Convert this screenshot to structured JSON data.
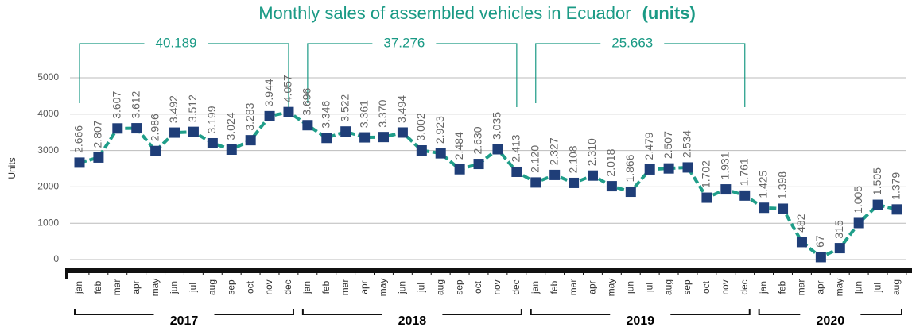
{
  "chart_data": {
    "type": "line",
    "title": "Monthly sales of assembled vehicles in Ecuador",
    "title_emphasis": "(units)",
    "y_label": "Units",
    "categories": [
      "jan",
      "feb",
      "mar",
      "apr",
      "may",
      "jun",
      "jul",
      "aug",
      "sep",
      "oct",
      "nov",
      "dec",
      "jan",
      "feb",
      "mar",
      "apr",
      "may",
      "jun",
      "jul",
      "aug",
      "sep",
      "oct",
      "nov",
      "dec",
      "jan",
      "feb",
      "mar",
      "apr",
      "may",
      "jun",
      "jul",
      "aug",
      "sep",
      "oct",
      "nov",
      "dec",
      "jan",
      "feb",
      "mar",
      "apr",
      "may",
      "jun",
      "jul",
      "aug"
    ],
    "years": [
      "2017",
      "2018",
      "2019",
      "2020"
    ],
    "annotations": [
      "40.189",
      "37.276",
      "25.663"
    ],
    "series": [
      {
        "name": "Units",
        "color": "#1f9e89",
        "marker_color": "#1f3e78",
        "values": [
          2666,
          2807,
          3607,
          3612,
          2986,
          3492,
          3512,
          3199,
          3024,
          3283,
          3944,
          4057,
          3696,
          3346,
          3522,
          3361,
          3370,
          3494,
          3002,
          2923,
          2484,
          2630,
          3035,
          2413,
          2120,
          2327,
          2108,
          2310,
          2018,
          1866,
          2479,
          2507,
          2534,
          1702,
          1931,
          1761,
          1425,
          1398,
          482,
          67,
          315,
          1005,
          1505,
          1379
        ],
        "value_labels": [
          "2.666",
          "2.807",
          "3.607",
          "3.612",
          "2.986",
          "3.492",
          "3.512",
          "3.199",
          "3.024",
          "3.283",
          "3.944",
          "4.057",
          "3.696",
          "3.346",
          "3.522",
          "3.361",
          "3.370",
          "3.494",
          "3.002",
          "2.923",
          "2.484",
          "2.630",
          "3.035",
          "2.413",
          "2.120",
          "2.327",
          "2.108",
          "2.310",
          "2.018",
          "1.866",
          "2.479",
          "2.507",
          "2.534",
          "1.702",
          "1.931",
          "1.761",
          "1.425",
          "1.398",
          "482",
          "67",
          "315",
          "1.005",
          "1.505",
          "1.379"
        ]
      }
    ],
    "ylim": [
      0,
      5000
    ],
    "yticks": [
      0,
      1000,
      2000,
      3000,
      4000,
      5000
    ],
    "grid": true
  }
}
